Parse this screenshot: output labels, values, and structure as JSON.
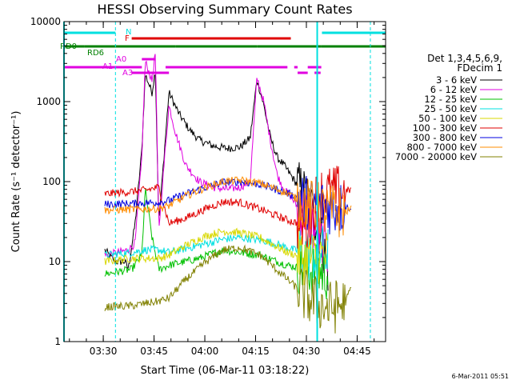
{
  "chart_data": {
    "type": "line",
    "title": "HESSI Observing Summary Count Rates",
    "xlabel": "Start Time (06-Mar-11 03:18:22)",
    "ylabel": "Count Rate (s⁻¹ detector⁻¹)",
    "yscale": "log",
    "ylim": [
      1,
      10000
    ],
    "xlim_minutes": [
      0,
      95
    ],
    "x_ticks": [
      {
        "label": "03:30",
        "minutes": 11.6
      },
      {
        "label": "03:45",
        "minutes": 26.6
      },
      {
        "label": "04:00",
        "minutes": 41.6
      },
      {
        "label": "04:15",
        "minutes": 56.6
      },
      {
        "label": "04:30",
        "minutes": 71.6
      },
      {
        "label": "04:45",
        "minutes": 86.6
      }
    ],
    "y_ticks": [
      {
        "label": "1",
        "value": 1
      },
      {
        "label": "10",
        "value": 10
      },
      {
        "label": "100",
        "value": 100
      },
      {
        "label": "1000",
        "value": 1000
      },
      {
        "label": "10000",
        "value": 10000
      }
    ],
    "grid": false,
    "legend_position": "right",
    "legend_title": [
      "Det 1,3,4,5,6,9,",
      "FDecim 1"
    ],
    "series": [
      {
        "name": "3 - 6 keV",
        "color": "#000000",
        "x": [
          0,
          11,
          12,
          15,
          18,
          19,
          21,
          23,
          24,
          26,
          27,
          28,
          31,
          34,
          37,
          40,
          44,
          48,
          52,
          55,
          57,
          59,
          61,
          63,
          65,
          67,
          69,
          72,
          75,
          78,
          83,
          85,
          86,
          95
        ],
        "y": [
          null,
          null,
          14,
          10,
          10,
          8,
          30,
          250,
          2200,
          1300,
          2500,
          30,
          1300,
          700,
          450,
          330,
          280,
          260,
          270,
          350,
          1900,
          900,
          350,
          200,
          160,
          120,
          90,
          60,
          30,
          8,
          null,
          null,
          null,
          null
        ]
      },
      {
        "name": "6 - 12 keV",
        "color": "#e000e0",
        "x": [
          0,
          11,
          12,
          16,
          19,
          21,
          23,
          24,
          26,
          27,
          28,
          31,
          33,
          36,
          40,
          44,
          48,
          52,
          55,
          57,
          59,
          61,
          63,
          65,
          67,
          69,
          72,
          75,
          78,
          83,
          85,
          86,
          95
        ],
        "y": [
          null,
          null,
          12,
          13,
          14,
          17,
          200,
          3200,
          1800,
          4200,
          25,
          900,
          400,
          160,
          100,
          85,
          80,
          85,
          100,
          2000,
          1000,
          320,
          120,
          80,
          65,
          48,
          40,
          20,
          13,
          null,
          null,
          null,
          null
        ]
      },
      {
        "name": "12 - 25 keV",
        "color": "#00c000",
        "x": [
          0,
          11,
          12,
          20,
          23,
          24,
          26,
          28,
          31,
          40,
          47,
          52,
          58,
          66,
          72,
          78,
          83,
          85,
          86,
          95
        ],
        "y": [
          null,
          null,
          7,
          8,
          12,
          80,
          20,
          8,
          9,
          11,
          14,
          13,
          12,
          9,
          8,
          7,
          null,
          null,
          null,
          null
        ]
      },
      {
        "name": "25 - 50 keV",
        "color": "#00e0e0",
        "x": [
          0,
          11,
          12,
          20,
          24,
          28,
          31,
          40,
          47,
          52,
          60,
          68,
          73,
          78,
          83,
          85,
          86,
          95
        ],
        "y": [
          null,
          null,
          12,
          13,
          14,
          14,
          13,
          16,
          19,
          20,
          18,
          14,
          12,
          14,
          null,
          null,
          null,
          null
        ]
      },
      {
        "name": "50 - 100 keV",
        "color": "#d8d800",
        "x": [
          0,
          11,
          12,
          20,
          28,
          31,
          36,
          42,
          47,
          52,
          58,
          66,
          72,
          78,
          83,
          85,
          86,
          95
        ],
        "y": [
          null,
          null,
          10,
          11,
          11,
          12,
          16,
          21,
          24,
          23,
          20,
          13,
          11,
          12,
          null,
          null,
          null,
          null
        ]
      },
      {
        "name": "100 - 300 keV",
        "color": "#e00000",
        "x": [
          0,
          11,
          12,
          20,
          24,
          28,
          31,
          36,
          42,
          47,
          52,
          58,
          66,
          72,
          75,
          78,
          83,
          85,
          86,
          95
        ],
        "y": [
          null,
          null,
          70,
          75,
          78,
          85,
          30,
          35,
          46,
          56,
          55,
          45,
          33,
          28,
          70,
          72,
          75,
          80,
          null,
          null
        ]
      },
      {
        "name": "300 - 800 keV",
        "color": "#0000e0",
        "x": [
          0,
          11,
          12,
          20,
          28,
          31,
          36,
          42,
          47,
          52,
          58,
          66,
          72,
          78,
          83,
          85,
          86,
          95
        ],
        "y": [
          null,
          null,
          52,
          53,
          55,
          58,
          70,
          85,
          98,
          100,
          92,
          72,
          55,
          48,
          47,
          48,
          null,
          null
        ]
      },
      {
        "name": "800 - 7000 keV",
        "color": "#ff8c00",
        "x": [
          0,
          11,
          12,
          20,
          28,
          31,
          36,
          42,
          47,
          52,
          58,
          66,
          72,
          78,
          83,
          85,
          86,
          95
        ],
        "y": [
          null,
          null,
          44,
          45,
          46,
          50,
          66,
          85,
          100,
          104,
          95,
          72,
          50,
          42,
          42,
          45,
          null,
          null
        ]
      },
      {
        "name": "7000 - 20000 keV",
        "color": "#808000",
        "x": [
          0,
          11,
          12,
          20,
          28,
          31,
          36,
          42,
          47,
          52,
          58,
          66,
          72,
          78,
          83,
          85,
          86,
          95
        ],
        "y": [
          null,
          null,
          2.7,
          2.8,
          3.2,
          3.5,
          6,
          10,
          14,
          15,
          12,
          6,
          3.5,
          2.6,
          3,
          5,
          null,
          null
        ]
      }
    ],
    "attenuator_lines_minutes": [
      0,
      15.2,
      74.8,
      90.5
    ],
    "flags": [
      {
        "label": "N",
        "color": "#00e0e0",
        "segments": [
          [
            0,
            15.2
          ],
          [
            76.2,
            95
          ]
        ]
      },
      {
        "label": "F",
        "color": "#e00000",
        "segments": [
          [
            20,
            67
          ]
        ]
      },
      {
        "label": "RD0",
        "color": "#008000",
        "segments": [
          [
            0,
            6
          ],
          [
            6,
            33
          ],
          [
            33,
            57
          ],
          [
            57,
            76
          ],
          [
            76,
            95
          ]
        ]
      },
      {
        "label": "RD6",
        "color": "#008000",
        "segments": []
      },
      {
        "label": "A0",
        "color": "#e000e0",
        "segments": [
          [
            23,
            27
          ]
        ]
      },
      {
        "label": "A1",
        "color": "#e000e0",
        "segments": [
          [
            0,
            15
          ],
          [
            15,
            23
          ],
          [
            30,
            66
          ],
          [
            68,
            69
          ],
          [
            72,
            76
          ]
        ]
      },
      {
        "label": "A3",
        "color": "#e000e0",
        "segments": [
          [
            20,
            31
          ],
          [
            69,
            72
          ],
          [
            74,
            75.8
          ]
        ]
      }
    ],
    "stamp": "6-Mar-2011 05:51"
  }
}
